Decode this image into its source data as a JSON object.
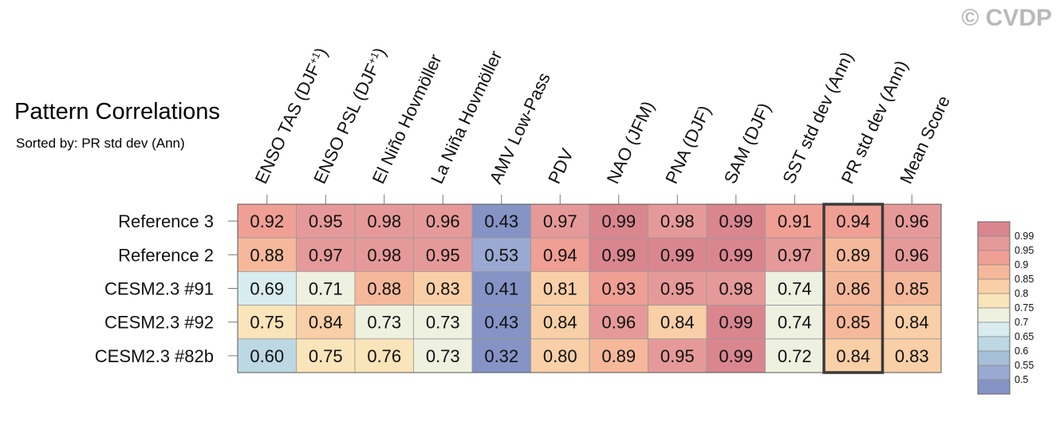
{
  "title": "Pattern Correlations",
  "subtitle": "Sorted by: PR std dev (Ann)",
  "watermark": "© CVDP",
  "chart_data": {
    "type": "heatmap",
    "columns": [
      {
        "base": "ENSO TAS (DJF",
        "sup": "+1",
        "tail": ")"
      },
      {
        "base": "ENSO PSL (DJF",
        "sup": "+1",
        "tail": ")"
      },
      {
        "base": "El Niño Hovmöller"
      },
      {
        "base": "La Niña Hovmöller"
      },
      {
        "base": "AMV Low-Pass"
      },
      {
        "base": "PDV"
      },
      {
        "base": "NAO (JFM)"
      },
      {
        "base": "PNA (DJF)"
      },
      {
        "base": "SAM (DJF)"
      },
      {
        "base": "SST std dev (Ann)"
      },
      {
        "base": "PR std dev (Ann)"
      },
      {
        "base": "Mean Score"
      }
    ],
    "rows": [
      "Reference 3",
      "Reference 2",
      "CESM2.3 #91",
      "CESM2.3 #92",
      "CESM2.3 #82b"
    ],
    "values": [
      [
        "0.92",
        "0.95",
        "0.98",
        "0.96",
        "0.43",
        "0.97",
        "0.99",
        "0.98",
        "0.99",
        "0.91",
        "0.94",
        "0.96"
      ],
      [
        "0.88",
        "0.97",
        "0.98",
        "0.95",
        "0.53",
        "0.94",
        "0.99",
        "0.99",
        "0.99",
        "0.97",
        "0.89",
        "0.96"
      ],
      [
        "0.69",
        "0.71",
        "0.88",
        "0.83",
        "0.41",
        "0.81",
        "0.93",
        "0.95",
        "0.98",
        "0.74",
        "0.86",
        "0.85"
      ],
      [
        "0.75",
        "0.84",
        "0.73",
        "0.73",
        "0.43",
        "0.84",
        "0.96",
        "0.84",
        "0.99",
        "0.74",
        "0.85",
        "0.84"
      ],
      [
        "0.60",
        "0.75",
        "0.76",
        "0.73",
        "0.32",
        "0.80",
        "0.89",
        "0.95",
        "0.99",
        "0.72",
        "0.84",
        "0.83"
      ]
    ],
    "highlight_column": "PR std dev (Ann)",
    "colorbar": {
      "labels": [
        "0.99",
        "0.95",
        "0.9",
        "0.85",
        "0.8",
        "0.75",
        "0.7",
        "0.65",
        "0.6",
        "0.55",
        "0.5"
      ],
      "colors": [
        "#d9868f",
        "#e59a99",
        "#ef9f94",
        "#f5b89a",
        "#f8cfa6",
        "#fae4b9",
        "#eef0e0",
        "#d9ecef",
        "#bcd8e3",
        "#a6bfd8",
        "#9aa9d1",
        "#8593c5"
      ]
    }
  }
}
